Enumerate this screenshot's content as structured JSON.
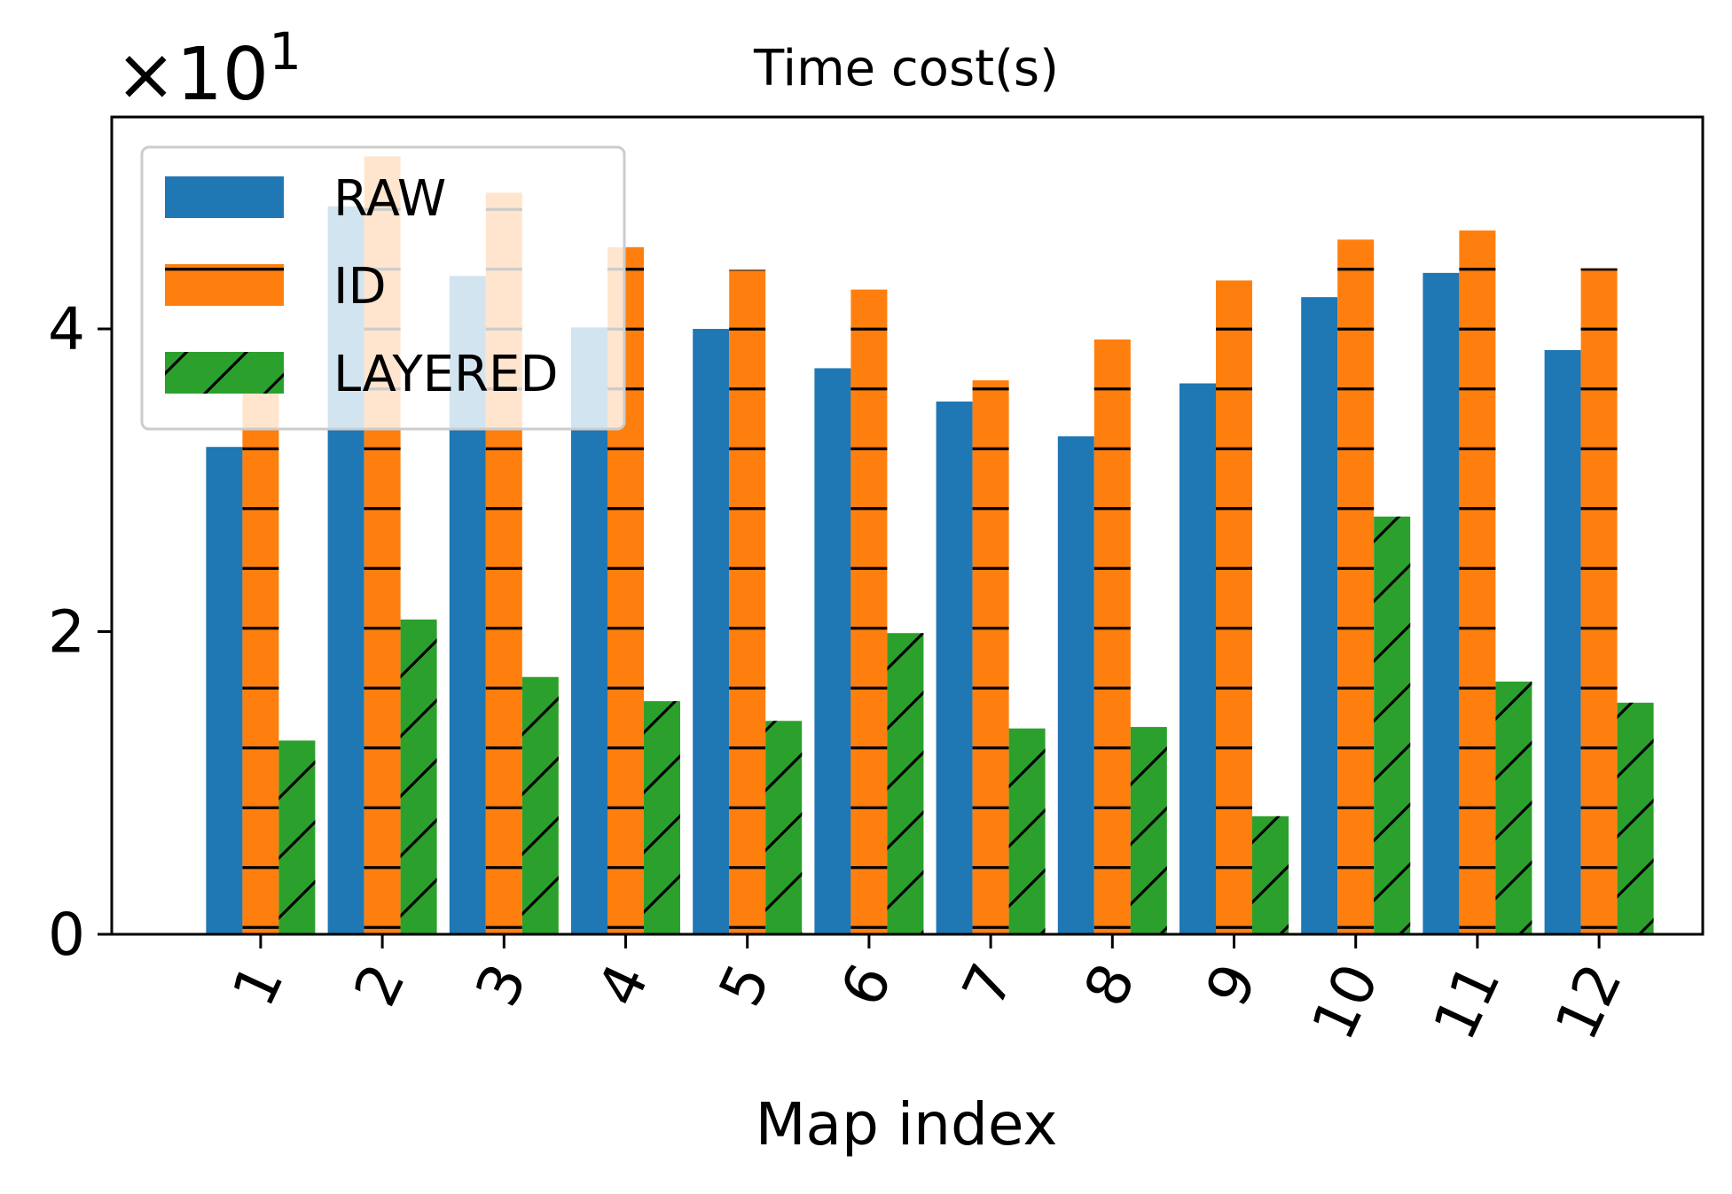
{
  "chart_data": {
    "type": "bar",
    "title": "Time cost(s)",
    "xlabel": "Map index",
    "ylabel": "",
    "y_scale_label": "×10",
    "y_scale_exponent": "1",
    "y_scale_factor": 10,
    "ylim": [
      0,
      5.4
    ],
    "yticks": [
      0,
      2,
      4
    ],
    "ytick_labels": [
      "0",
      "2",
      "4"
    ],
    "categories": [
      "1",
      "2",
      "3",
      "4",
      "5",
      "6",
      "7",
      "8",
      "9",
      "10",
      "11",
      "12"
    ],
    "grid": false,
    "legend_position": "top-left",
    "series": [
      {
        "name": "RAW",
        "color": "#1f77b4",
        "hatch": "none",
        "values": [
          3.22,
          4.81,
          4.35,
          4.01,
          4.0,
          3.74,
          3.52,
          3.29,
          3.64,
          4.21,
          4.37,
          3.86
        ]
      },
      {
        "name": "ID",
        "color": "#ff7f0e",
        "hatch": "horizontal",
        "values": [
          3.6,
          5.14,
          4.9,
          4.54,
          4.39,
          4.26,
          3.66,
          3.93,
          4.32,
          4.59,
          4.65,
          4.4
        ]
      },
      {
        "name": "LAYERED",
        "color": "#2ca02c",
        "hatch": "diagonal",
        "values": [
          1.28,
          2.08,
          1.7,
          1.54,
          1.41,
          1.99,
          1.36,
          1.37,
          0.78,
          2.76,
          1.67,
          1.53
        ]
      }
    ]
  }
}
